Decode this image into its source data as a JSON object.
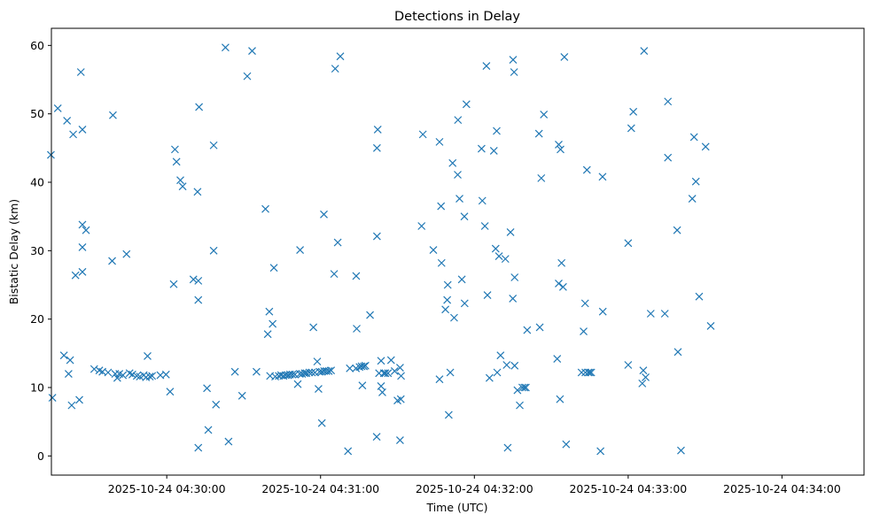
{
  "chart_data": {
    "type": "scatter",
    "title": "Detections in Delay",
    "xlabel": "Time (UTC)",
    "ylabel": "Bistatic Delay (km)",
    "x_unit": "seconds after 2025-10-24 04:30:00",
    "xlim": [
      -45,
      272
    ],
    "ylim": [
      -2.8,
      62.5
    ],
    "x_ticks": [
      {
        "value": 0,
        "label": "2025-10-24 04:30:00"
      },
      {
        "value": 60,
        "label": "2025-10-24 04:31:00"
      },
      {
        "value": 120,
        "label": "2025-10-24 04:32:00"
      },
      {
        "value": 180,
        "label": "2025-10-24 04:33:00"
      },
      {
        "value": 240,
        "label": "2025-10-24 04:34:00"
      }
    ],
    "y_ticks": [
      {
        "value": 0,
        "label": "0"
      },
      {
        "value": 10,
        "label": "10"
      },
      {
        "value": 20,
        "label": "20"
      },
      {
        "value": 30,
        "label": "30"
      },
      {
        "value": 40,
        "label": "40"
      },
      {
        "value": 50,
        "label": "50"
      },
      {
        "value": 60,
        "label": "60"
      }
    ],
    "marker": "x",
    "color": "#1f77b4",
    "grid": false,
    "points": [
      [
        -45.2,
        44.0
      ],
      [
        -44.6,
        8.5
      ],
      [
        -42.5,
        50.8
      ],
      [
        -40.1,
        14.7
      ],
      [
        -38.9,
        49.0
      ],
      [
        -38.3,
        12.0
      ],
      [
        -37.7,
        14.0
      ],
      [
        -37.1,
        7.4
      ],
      [
        -36.5,
        47.0
      ],
      [
        -35.6,
        26.4
      ],
      [
        -34.1,
        8.2
      ],
      [
        -33.5,
        56.1
      ],
      [
        -32.9,
        47.7
      ],
      [
        -32.9,
        33.8
      ],
      [
        -32.9,
        30.5
      ],
      [
        -32.9,
        26.9
      ],
      [
        -31.5,
        33.0
      ],
      [
        -28.3,
        12.7
      ],
      [
        -26.3,
        12.5
      ],
      [
        -25.1,
        12.3
      ],
      [
        -22.9,
        12.2
      ],
      [
        -21.3,
        28.5
      ],
      [
        -21.0,
        49.8
      ],
      [
        -20.1,
        12.0
      ],
      [
        -19.3,
        11.4
      ],
      [
        -18.5,
        12.0
      ],
      [
        -17.1,
        11.8
      ],
      [
        -15.7,
        29.5
      ],
      [
        -14.5,
        12.1
      ],
      [
        -13.4,
        11.9
      ],
      [
        -11.7,
        11.7
      ],
      [
        -10.5,
        11.6
      ],
      [
        -9.0,
        11.8
      ],
      [
        -8.1,
        11.5
      ],
      [
        -7.5,
        14.6
      ],
      [
        -6.6,
        11.6
      ],
      [
        -5.7,
        11.7
      ],
      [
        -2.5,
        11.8
      ],
      [
        1.3,
        9.4
      ],
      [
        -0.3,
        11.9
      ],
      [
        2.7,
        25.1
      ],
      [
        3.2,
        44.8
      ],
      [
        3.8,
        43.0
      ],
      [
        5.3,
        40.3
      ],
      [
        6.2,
        39.4
      ],
      [
        10.4,
        25.8
      ],
      [
        12.0,
        38.6
      ],
      [
        12.6,
        51.0
      ],
      [
        12.3,
        25.6
      ],
      [
        12.3,
        22.8
      ],
      [
        12.3,
        1.2
      ],
      [
        15.7,
        9.9
      ],
      [
        16.2,
        3.8
      ],
      [
        18.3,
        30.0
      ],
      [
        18.3,
        45.4
      ],
      [
        19.2,
        7.5
      ],
      [
        22.9,
        59.7
      ],
      [
        24.1,
        2.1
      ],
      [
        26.6,
        12.3
      ],
      [
        29.4,
        8.8
      ],
      [
        31.4,
        55.5
      ],
      [
        33.3,
        59.2
      ],
      [
        35.0,
        12.3
      ],
      [
        38.5,
        36.1
      ],
      [
        40.3,
        11.7
      ],
      [
        39.4,
        17.8
      ],
      [
        40.0,
        21.1
      ],
      [
        41.3,
        19.3
      ],
      [
        41.8,
        27.5
      ],
      [
        42.3,
        11.6
      ],
      [
        43.7,
        11.7
      ],
      [
        44.6,
        11.8
      ],
      [
        45.5,
        11.7
      ],
      [
        46.4,
        11.8
      ],
      [
        47.3,
        11.8
      ],
      [
        48.1,
        11.9
      ],
      [
        49.0,
        11.9
      ],
      [
        50.0,
        11.9
      ],
      [
        51.1,
        10.5
      ],
      [
        51.9,
        12.0
      ],
      [
        52.8,
        12.0
      ],
      [
        53.8,
        12.1
      ],
      [
        54.5,
        12.1
      ],
      [
        55.6,
        12.2
      ],
      [
        56.6,
        12.2
      ],
      [
        57.2,
        18.8
      ],
      [
        57.8,
        12.2
      ],
      [
        58.7,
        13.8
      ],
      [
        59.2,
        9.8
      ],
      [
        59.6,
        12.3
      ],
      [
        60.5,
        12.3
      ],
      [
        61.4,
        12.4
      ],
      [
        62.3,
        12.4
      ],
      [
        63.2,
        12.4
      ],
      [
        64.1,
        12.5
      ],
      [
        61.3,
        35.3
      ],
      [
        60.5,
        4.8
      ],
      [
        52.0,
        30.1
      ],
      [
        65.7,
        56.6
      ],
      [
        65.3,
        26.6
      ],
      [
        66.7,
        31.2
      ],
      [
        67.7,
        58.4
      ],
      [
        70.7,
        0.7
      ],
      [
        71.4,
        12.8
      ],
      [
        73.9,
        26.3
      ],
      [
        74.1,
        18.6
      ],
      [
        73.8,
        12.8
      ],
      [
        75.2,
        13.0
      ],
      [
        76.0,
        13.1
      ],
      [
        76.3,
        10.3
      ],
      [
        76.9,
        13.1
      ],
      [
        77.5,
        13.2
      ],
      [
        79.3,
        20.6
      ],
      [
        82.0,
        45.0
      ],
      [
        82.3,
        47.7
      ],
      [
        82.0,
        32.1
      ],
      [
        81.9,
        2.8
      ],
      [
        82.8,
        12.1
      ],
      [
        83.6,
        13.9
      ],
      [
        83.6,
        10.2
      ],
      [
        84.1,
        9.3
      ],
      [
        84.7,
        12.1
      ],
      [
        85.3,
        12.1
      ],
      [
        86.3,
        12.1
      ],
      [
        87.5,
        14.0
      ],
      [
        88.9,
        12.4
      ],
      [
        90.0,
        8.1
      ],
      [
        91.0,
        2.3
      ],
      [
        91.0,
        12.9
      ],
      [
        91.3,
        8.3
      ],
      [
        91.4,
        11.7
      ],
      [
        99.4,
        33.6
      ],
      [
        99.9,
        47.0
      ],
      [
        104.0,
        30.1
      ],
      [
        106.4,
        45.9
      ],
      [
        106.4,
        11.2
      ],
      [
        107.0,
        36.5
      ],
      [
        107.2,
        28.2
      ],
      [
        108.7,
        21.4
      ],
      [
        109.4,
        22.8
      ],
      [
        109.6,
        25.0
      ],
      [
        110.0,
        6.0
      ],
      [
        110.6,
        12.2
      ],
      [
        111.5,
        42.8
      ],
      [
        112.1,
        20.2
      ],
      [
        113.5,
        41.1
      ],
      [
        113.6,
        49.1
      ],
      [
        114.2,
        37.6
      ],
      [
        115.1,
        25.8
      ],
      [
        116.1,
        35.0
      ],
      [
        116.2,
        22.3
      ],
      [
        116.9,
        51.4
      ],
      [
        122.8,
        44.9
      ],
      [
        123.1,
        37.3
      ],
      [
        124.1,
        33.6
      ],
      [
        124.7,
        57.0
      ],
      [
        125.1,
        23.5
      ],
      [
        125.9,
        11.4
      ],
      [
        127.6,
        44.6
      ],
      [
        128.3,
        30.3
      ],
      [
        128.7,
        47.5
      ],
      [
        128.9,
        12.2
      ],
      [
        129.6,
        29.2
      ],
      [
        130.2,
        14.7
      ],
      [
        132.1,
        28.8
      ],
      [
        132.6,
        13.3
      ],
      [
        133.0,
        1.2
      ],
      [
        134.1,
        32.7
      ],
      [
        135.1,
        57.9
      ],
      [
        135.5,
        56.1
      ],
      [
        135.0,
        23.0
      ],
      [
        135.7,
        26.1
      ],
      [
        135.7,
        13.2
      ],
      [
        136.8,
        9.6
      ],
      [
        137.7,
        7.4
      ],
      [
        138.7,
        10.0
      ],
      [
        139.5,
        10.0
      ],
      [
        140.1,
        10.0
      ],
      [
        140.6,
        18.4
      ],
      [
        145.2,
        47.1
      ],
      [
        145.5,
        18.8
      ],
      [
        146.1,
        40.6
      ],
      [
        147.1,
        49.9
      ],
      [
        152.3,
        14.2
      ],
      [
        152.9,
        25.2
      ],
      [
        152.9,
        45.5
      ],
      [
        153.4,
        8.3
      ],
      [
        153.6,
        44.8
      ],
      [
        154.0,
        28.2
      ],
      [
        154.6,
        24.7
      ],
      [
        155.1,
        58.3
      ],
      [
        155.8,
        1.7
      ],
      [
        161.8,
        12.2
      ],
      [
        162.6,
        18.2
      ],
      [
        163.2,
        22.3
      ],
      [
        163.3,
        12.2
      ],
      [
        163.9,
        41.8
      ],
      [
        164.4,
        12.2
      ],
      [
        165.0,
        12.2
      ],
      [
        165.6,
        12.2
      ],
      [
        169.2,
        0.7
      ],
      [
        170.0,
        40.8
      ],
      [
        170.1,
        21.1
      ],
      [
        180.0,
        31.1
      ],
      [
        180.0,
        13.3
      ],
      [
        181.2,
        47.9
      ],
      [
        182.0,
        50.3
      ],
      [
        186.2,
        59.2
      ],
      [
        185.9,
        12.5
      ],
      [
        185.5,
        10.6
      ],
      [
        186.8,
        11.5
      ],
      [
        188.8,
        20.8
      ],
      [
        194.3,
        20.8
      ],
      [
        195.5,
        43.6
      ],
      [
        195.5,
        51.8
      ],
      [
        199.1,
        33.0
      ],
      [
        199.4,
        15.2
      ],
      [
        200.6,
        0.8
      ],
      [
        205.0,
        37.6
      ],
      [
        205.7,
        46.6
      ],
      [
        206.4,
        40.1
      ],
      [
        207.7,
        23.3
      ],
      [
        210.2,
        45.2
      ],
      [
        212.2,
        19.0
      ]
    ]
  }
}
